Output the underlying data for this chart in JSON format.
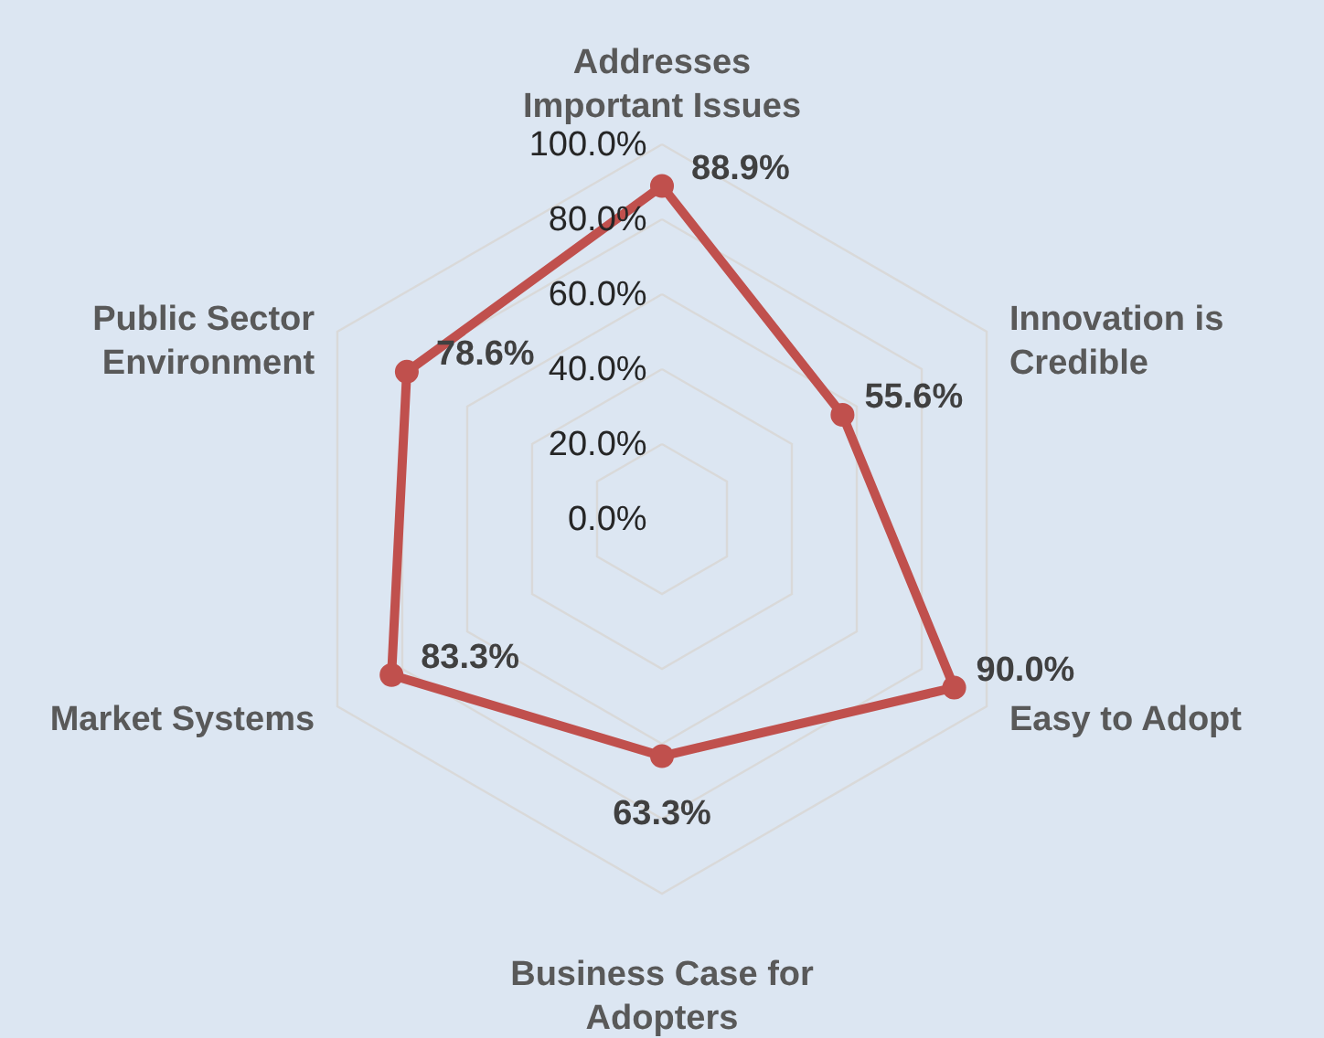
{
  "chart_data": {
    "type": "radar",
    "categories": [
      "Addresses Important Issues",
      "Innovation is Credible",
      "Easy to Adopt",
      "Business Case for Adopters",
      "Market Systems",
      "Public Sector Environment"
    ],
    "series": [
      {
        "color": "#c0504d",
        "values": [
          88.9,
          55.6,
          90.0,
          63.3,
          83.3,
          78.6
        ],
        "value_labels": [
          "88.9%",
          "55.6%",
          "90.0%",
          "63.3%",
          "83.3%",
          "78.6%"
        ]
      }
    ],
    "ylim": [
      0,
      100
    ],
    "yticks": [
      {
        "value": 0,
        "label": "0.0%"
      },
      {
        "value": 20,
        "label": "20.0%"
      },
      {
        "value": 40,
        "label": "40.0%"
      },
      {
        "value": 60,
        "label": "60.0%"
      },
      {
        "value": 80,
        "label": "80.0%"
      },
      {
        "value": 100,
        "label": "100.0%"
      }
    ],
    "grid": true,
    "marker": "circle",
    "line_style": "solid"
  }
}
